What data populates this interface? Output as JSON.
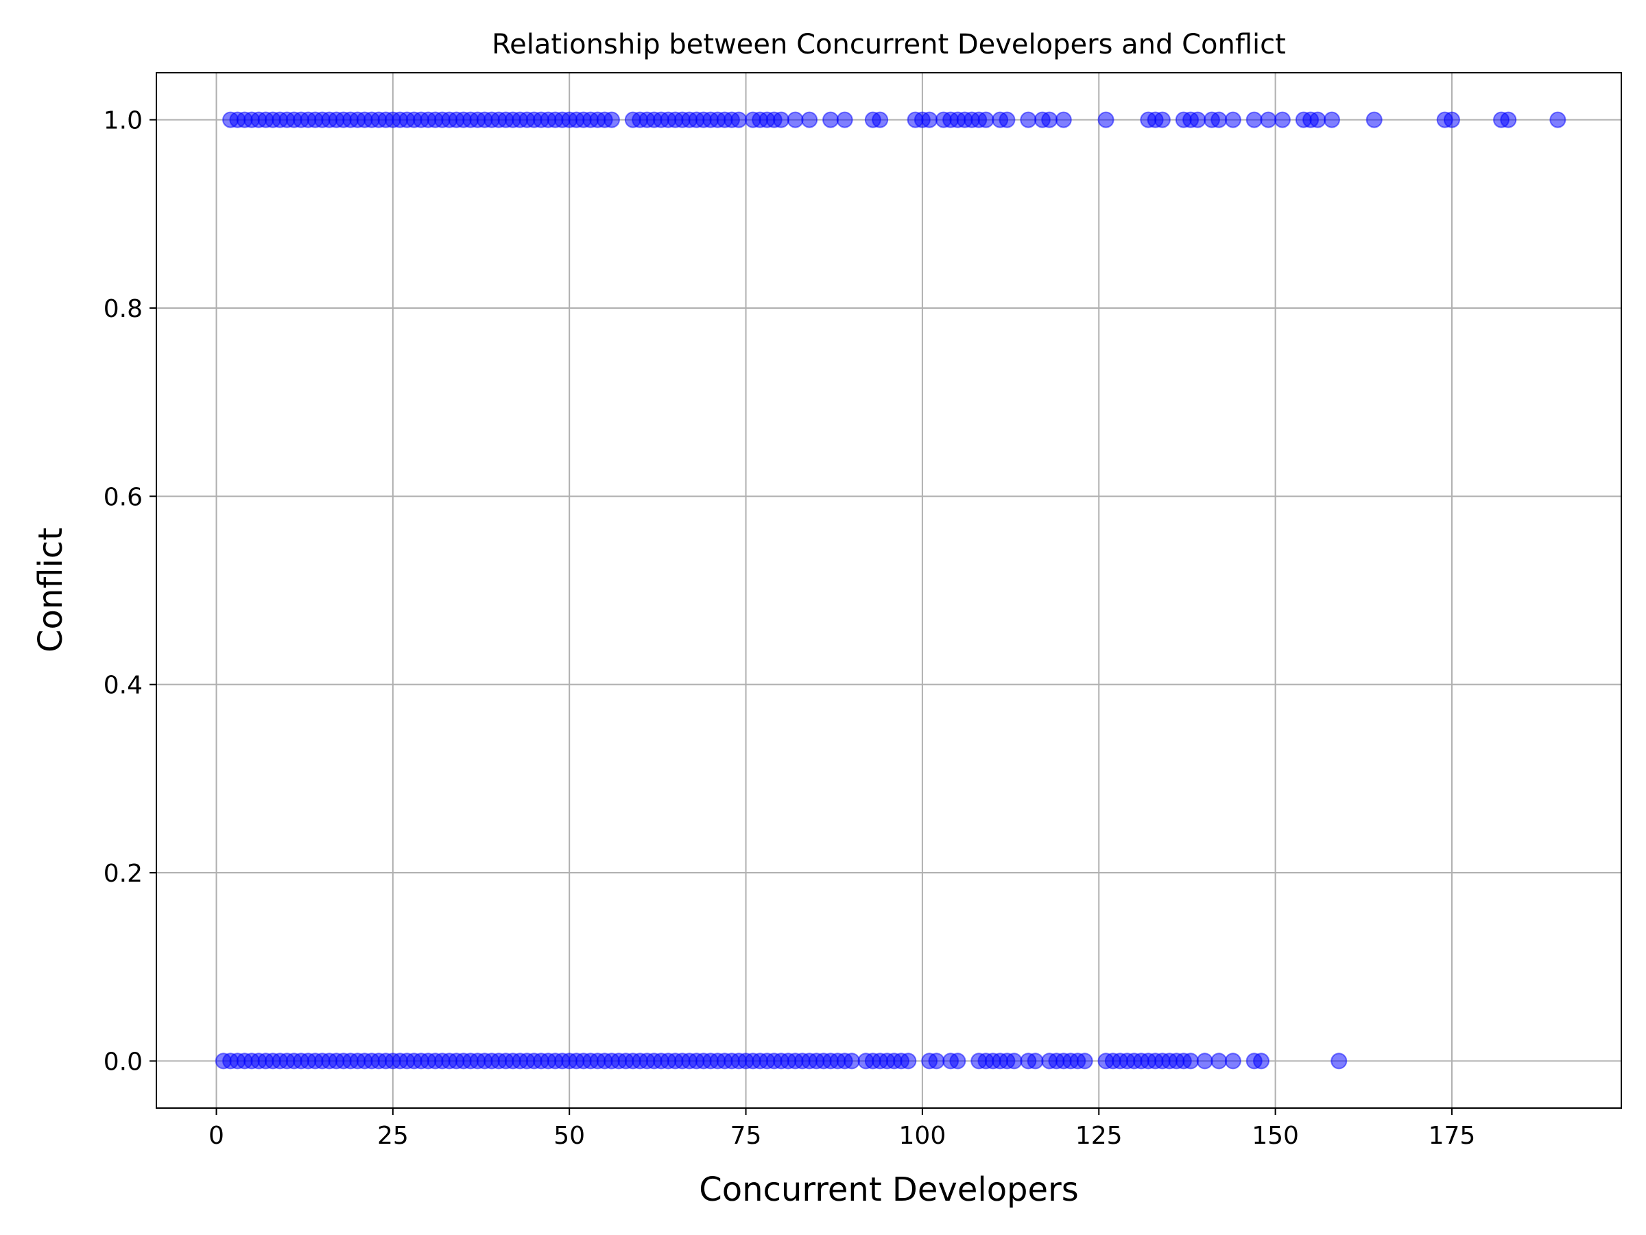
{
  "chart_data": {
    "type": "scatter",
    "title": "Relationship between Concurrent Developers and Conflict",
    "xlabel": "Concurrent Developers",
    "ylabel": "Conflict",
    "xlim": [
      -8.5,
      199
    ],
    "ylim": [
      -0.05,
      1.05
    ],
    "xticks": [
      0,
      25,
      50,
      75,
      100,
      125,
      150,
      175
    ],
    "yticks": [
      0.0,
      0.2,
      0.4,
      0.6,
      0.8,
      1.0
    ],
    "xtick_labels": [
      "0",
      "25",
      "50",
      "75",
      "100",
      "125",
      "150",
      "175"
    ],
    "ytick_labels": [
      "0.0",
      "0.2",
      "0.4",
      "0.6",
      "0.8",
      "1.0"
    ],
    "grid": true,
    "marker_color": "#0000ff",
    "marker_alpha": 0.5,
    "series": [
      {
        "y": 1.0,
        "x": [
          2,
          3,
          4,
          5,
          6,
          7,
          8,
          9,
          10,
          11,
          12,
          13,
          14,
          15,
          16,
          17,
          18,
          19,
          20,
          21,
          22,
          23,
          24,
          25,
          26,
          27,
          28,
          29,
          30,
          31,
          32,
          33,
          34,
          35,
          36,
          37,
          38,
          39,
          40,
          41,
          42,
          43,
          44,
          45,
          46,
          47,
          48,
          49,
          50,
          51,
          52,
          53,
          54,
          55,
          56,
          59,
          60,
          61,
          62,
          63,
          64,
          65,
          66,
          67,
          68,
          69,
          70,
          71,
          72,
          73,
          74,
          76,
          77,
          78,
          79,
          80,
          82,
          84,
          87,
          89,
          93,
          94,
          99,
          100,
          101,
          103,
          104,
          105,
          106,
          107,
          108,
          109,
          111,
          112,
          115,
          117,
          118,
          120,
          126,
          132,
          133,
          134,
          137,
          138,
          139,
          141,
          142,
          144,
          147,
          149,
          151,
          154,
          155,
          156,
          158,
          164,
          174,
          175,
          182,
          183,
          190
        ]
      },
      {
        "y": 0.0,
        "x": [
          1,
          2,
          3,
          4,
          5,
          6,
          7,
          8,
          9,
          10,
          11,
          12,
          13,
          14,
          15,
          16,
          17,
          18,
          19,
          20,
          21,
          22,
          23,
          24,
          25,
          26,
          27,
          28,
          29,
          30,
          31,
          32,
          33,
          34,
          35,
          36,
          37,
          38,
          39,
          40,
          41,
          42,
          43,
          44,
          45,
          46,
          47,
          48,
          49,
          50,
          51,
          52,
          53,
          54,
          55,
          56,
          57,
          58,
          59,
          60,
          61,
          62,
          63,
          64,
          65,
          66,
          67,
          68,
          69,
          70,
          71,
          72,
          73,
          74,
          75,
          76,
          77,
          78,
          79,
          80,
          81,
          82,
          83,
          84,
          85,
          86,
          87,
          88,
          89,
          90,
          92,
          93,
          94,
          95,
          96,
          97,
          98,
          101,
          102,
          104,
          105,
          108,
          109,
          110,
          111,
          112,
          113,
          115,
          116,
          118,
          119,
          120,
          121,
          122,
          123,
          126,
          127,
          128,
          129,
          130,
          131,
          132,
          133,
          134,
          135,
          136,
          137,
          138,
          140,
          142,
          144,
          147,
          148,
          159
        ]
      }
    ]
  }
}
